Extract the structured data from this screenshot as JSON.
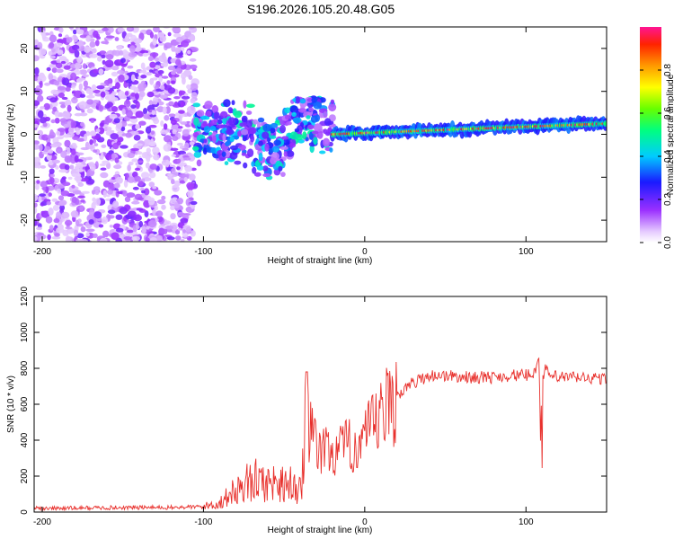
{
  "figure_title": "S196.2026.105.20.48.G05",
  "chart_data": [
    {
      "type": "heatmap",
      "title": "S196.2026.105.20.48.G05",
      "xlabel": "Height of straight line (km)",
      "ylabel": "Frequency (Hz)",
      "xlim": [
        -205,
        150
      ],
      "ylim": [
        -25,
        25
      ],
      "xticks": [
        -200,
        -100,
        0,
        100
      ],
      "yticks": [
        -20,
        -10,
        0,
        10,
        20
      ],
      "colorbar": {
        "label": "Normalized spectral amplitude",
        "range": [
          0,
          1
        ],
        "ticks": [
          0.0,
          0.2,
          0.4,
          0.6,
          0.8
        ]
      },
      "regions": [
        {
          "x_range": [
            -205,
            -105
          ],
          "description": "broadband low-amplitude noise",
          "freq_range": [
            -25,
            25
          ],
          "amplitude_range": [
            0.05,
            0.2
          ]
        },
        {
          "x_range": [
            -105,
            -20
          ],
          "description": "scattered signal around 0 Hz",
          "freq_range": [
            -15,
            8
          ],
          "amplitude_range": [
            0.1,
            0.5
          ]
        },
        {
          "x_range": [
            -20,
            150
          ],
          "description": "narrow tone near 0-3 Hz",
          "freq_center_start": 0,
          "freq_center_end": 2.5,
          "amplitude_range": [
            0.5,
            1.0
          ]
        }
      ]
    },
    {
      "type": "line",
      "xlabel": "Height of straight line (km)",
      "ylabel": "SNR (10 * v/v)",
      "xlim": [
        -205,
        150
      ],
      "ylim": [
        0,
        1200
      ],
      "xticks": [
        -200,
        -100,
        0,
        100
      ],
      "yticks": [
        0,
        200,
        400,
        600,
        800,
        1000,
        1200
      ],
      "series": [
        {
          "name": "SNR",
          "color": "#e8302c",
          "x": [
            -205,
            -180,
            -150,
            -120,
            -100,
            -90,
            -80,
            -70,
            -60,
            -50,
            -40,
            -36,
            -30,
            -20,
            -10,
            0,
            10,
            20,
            30,
            40,
            50,
            60,
            70,
            80,
            90,
            100,
            105,
            108,
            110,
            112,
            115,
            120,
            130,
            140,
            150
          ],
          "y": [
            20,
            22,
            25,
            25,
            30,
            50,
            120,
            180,
            160,
            170,
            130,
            500,
            350,
            330,
            360,
            400,
            520,
            650,
            720,
            760,
            760,
            750,
            750,
            750,
            760,
            760,
            780,
            850,
            400,
            790,
            760,
            750,
            750,
            745,
            740
          ]
        }
      ]
    }
  ]
}
